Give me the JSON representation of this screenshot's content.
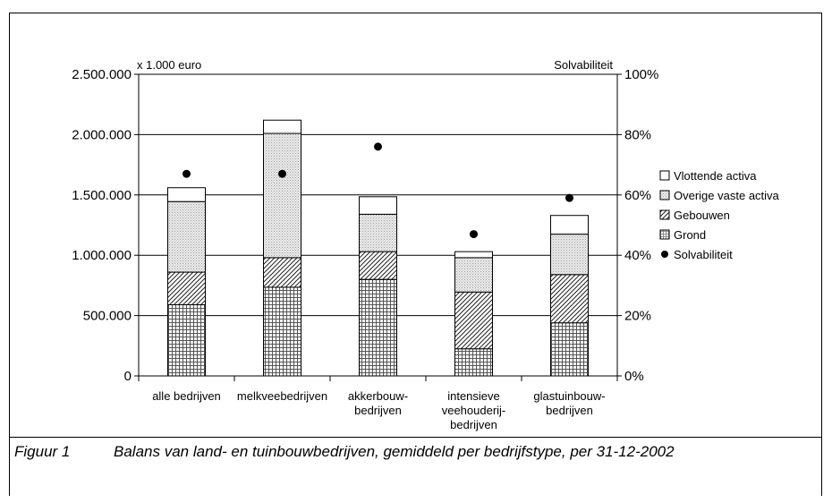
{
  "caption": {
    "figure_number": "Figuur 1",
    "text": "Balans van land- en tuinbouwbedrijven, gemiddeld per bedrijfstype, per 31-12-2002"
  },
  "chart_data": {
    "type": "bar",
    "stacked": true,
    "title": "",
    "y_unit_label": "x 1.000 euro",
    "y2_label": "Solvabiliteit",
    "ylim": [
      0,
      2500000
    ],
    "y_ticks": [
      "0",
      "500.000",
      "1.000.000",
      "1.500.000",
      "2.000.000",
      "2.500.000"
    ],
    "y_tick_values": [
      0,
      500000,
      1000000,
      1500000,
      2000000,
      2500000
    ],
    "y2lim": [
      0,
      100
    ],
    "y2_ticks": [
      "0%",
      "20%",
      "40%",
      "60%",
      "80%",
      "100%"
    ],
    "y2_tick_values": [
      0,
      20,
      40,
      60,
      80,
      100
    ],
    "grid": true,
    "legend_position": "right",
    "categories": [
      [
        "alle bedrijven"
      ],
      [
        "melkveebedrijven"
      ],
      [
        "akkerbouw-",
        "bedrijven"
      ],
      [
        "intensieve",
        "veehouderij-",
        "bedrijven"
      ],
      [
        "glastuinbouw-",
        "bedrijven"
      ]
    ],
    "series": [
      {
        "name": "Grond",
        "pattern": "grid",
        "values": [
          590000,
          735000,
          800000,
          225000,
          440000
        ]
      },
      {
        "name": "Gebouwen",
        "pattern": "diagonal",
        "values": [
          270000,
          245000,
          230000,
          470000,
          400000
        ]
      },
      {
        "name": "Overige vaste activa",
        "pattern": "dots",
        "values": [
          585000,
          1030000,
          310000,
          285000,
          335000
        ]
      },
      {
        "name": "Vlottende activa",
        "pattern": "none",
        "values": [
          115000,
          110000,
          145000,
          50000,
          155000
        ]
      }
    ],
    "secondary_series": {
      "name": "Solvabiliteit",
      "type": "scatter",
      "axis": "y2",
      "values": [
        67,
        67,
        76,
        47,
        59
      ]
    },
    "legend_order": [
      "Vlottende activa",
      "Overige vaste activa",
      "Gebouwen",
      "Grond",
      "Solvabiliteit"
    ]
  }
}
